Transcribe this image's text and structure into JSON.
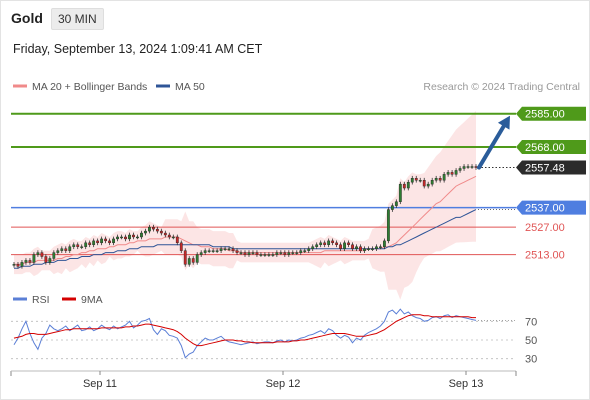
{
  "header": {
    "title": "Gold",
    "timeframe": "30 MIN",
    "datetime": "Friday, September 13, 2024 1:09:41 AM CET"
  },
  "legend": {
    "items": [
      {
        "label": "MA 20 + Bollinger Bands",
        "color": "#f08a8a"
      },
      {
        "label": "MA 50",
        "color": "#2f5597"
      }
    ],
    "credit": "Research © 2024 Trading Central"
  },
  "rsi_legend": {
    "items": [
      {
        "label": "RSI",
        "color": "#5b7fd6"
      },
      {
        "label": "9MA",
        "color": "#d40000"
      }
    ]
  },
  "colors": {
    "resistance": "#4f9a1a",
    "support": "#4f7ee0",
    "pivot_level": "#e05555",
    "current": "#2b2b2b",
    "arrow": "#2a5c9a",
    "candle_up": "#2e7d32",
    "candle_down": "#c62828",
    "band_fill": "#fbdcdc"
  },
  "chart_data": [
    {
      "type": "candlestick",
      "title": "",
      "x_ticks": [
        "Sep 11",
        "Sep 12",
        "Sep 13"
      ],
      "y_range": [
        2500,
        2592
      ],
      "levels": [
        {
          "value": 2585.0,
          "label": "2585.00",
          "kind": "resistance"
        },
        {
          "value": 2568.0,
          "label": "2568.00",
          "kind": "resistance"
        },
        {
          "value": 2557.48,
          "label": "2557.48",
          "kind": "current"
        },
        {
          "value": 2537.0,
          "label": "2537.00",
          "kind": "pivot"
        },
        {
          "value": 2527.0,
          "label": "2527.00",
          "kind": "support"
        },
        {
          "value": 2513.0,
          "label": "2513.00",
          "kind": "support"
        }
      ],
      "close_series": [
        2508,
        2507,
        2509,
        2510,
        2509,
        2513,
        2514,
        2512,
        2509,
        2511,
        2514,
        2515,
        2516,
        2515,
        2517,
        2518,
        2517,
        2517,
        2519,
        2518,
        2520,
        2519,
        2521,
        2520,
        2519,
        2521,
        2522,
        2522,
        2521,
        2523,
        2522,
        2522,
        2524,
        2525,
        2527,
        2526,
        2525,
        2524,
        2523,
        2522,
        2522,
        2519,
        2515,
        2508,
        2511,
        2509,
        2513,
        2514,
        2515,
        2515,
        2515,
        2515,
        2516,
        2516,
        2516,
        2515,
        2514,
        2514,
        2513,
        2514,
        2514,
        2513,
        2513,
        2513,
        2513,
        2513,
        2514,
        2514,
        2513,
        2514,
        2514,
        2514,
        2515,
        2515,
        2516,
        2517,
        2518,
        2519,
        2518,
        2520,
        2519,
        2518,
        2516,
        2519,
        2518,
        2516,
        2517,
        2515,
        2516,
        2516,
        2516,
        2517,
        2517,
        2520,
        2536,
        2538,
        2540,
        2549,
        2547,
        2550,
        2552,
        2551,
        2551,
        2548,
        2549,
        2551,
        2552,
        2551,
        2554,
        2555,
        2554,
        2556,
        2557,
        2558,
        2558,
        2558,
        2557.48
      ],
      "ma20_series": [
        2508,
        2508,
        2508,
        2509,
        2509,
        2509,
        2510,
        2510,
        2510,
        2510,
        2510,
        2511,
        2511,
        2512,
        2512,
        2513,
        2513,
        2514,
        2514,
        2515,
        2515,
        2516,
        2516,
        2516,
        2517,
        2517,
        2518,
        2518,
        2518,
        2519,
        2519,
        2520,
        2520,
        2520,
        2521,
        2521,
        2521,
        2521,
        2522,
        2522,
        2522,
        2522,
        2521,
        2520,
        2519,
        2518,
        2518,
        2517,
        2517,
        2517,
        2516,
        2516,
        2516,
        2516,
        2515,
        2515,
        2515,
        2514,
        2514,
        2514,
        2514,
        2514,
        2514,
        2514,
        2514,
        2514,
        2514,
        2514,
        2514,
        2514,
        2514,
        2514,
        2514,
        2514,
        2514,
        2514,
        2514,
        2514,
        2515,
        2515,
        2515,
        2515,
        2515,
        2515,
        2515,
        2515,
        2515,
        2515,
        2515,
        2516,
        2516,
        2516,
        2516,
        2517,
        2517,
        2518,
        2519,
        2521,
        2523,
        2525,
        2527,
        2529,
        2531,
        2533,
        2535,
        2537,
        2539,
        2540,
        2542,
        2544,
        2546,
        2548,
        2549,
        2550,
        2551,
        2552,
        2553
      ],
      "ma50_series": [
        2506,
        2506,
        2507,
        2507,
        2507,
        2508,
        2508,
        2508,
        2509,
        2509,
        2509,
        2510,
        2510,
        2510,
        2511,
        2511,
        2511,
        2512,
        2512,
        2512,
        2513,
        2513,
        2513,
        2514,
        2514,
        2514,
        2515,
        2515,
        2515,
        2516,
        2516,
        2516,
        2517,
        2517,
        2517,
        2517,
        2518,
        2518,
        2518,
        2518,
        2518,
        2518,
        2518,
        2518,
        2518,
        2518,
        2518,
        2518,
        2518,
        2518,
        2517,
        2517,
        2517,
        2517,
        2517,
        2516,
        2516,
        2516,
        2516,
        2516,
        2516,
        2516,
        2516,
        2516,
        2516,
        2516,
        2516,
        2516,
        2516,
        2516,
        2516,
        2516,
        2516,
        2516,
        2516,
        2516,
        2516,
        2516,
        2516,
        2516,
        2516,
        2516,
        2516,
        2516,
        2516,
        2516,
        2516,
        2516,
        2516,
        2516,
        2516,
        2516,
        2516,
        2516,
        2517,
        2517,
        2518,
        2518,
        2519,
        2520,
        2521,
        2522,
        2523,
        2524,
        2525,
        2526,
        2527,
        2528,
        2529,
        2530,
        2531,
        2532,
        2532,
        2533,
        2534,
        2535,
        2536
      ],
      "forecast_arrow": {
        "from": 2557.48,
        "to": 2585.0
      }
    },
    {
      "type": "line",
      "title": "",
      "y_ticks": [
        70,
        50,
        30
      ],
      "y_range": [
        20,
        80
      ],
      "series": [
        {
          "name": "RSI",
          "values": [
            45,
            52,
            62,
            70,
            57,
            47,
            40,
            52,
            57,
            66,
            62,
            60,
            62,
            65,
            60,
            63,
            66,
            60,
            61,
            64,
            60,
            62,
            66,
            63,
            61,
            65,
            62,
            64,
            66,
            70,
            63,
            66,
            70,
            71,
            73,
            61,
            56,
            62,
            60,
            55,
            54,
            52,
            44,
            31,
            35,
            37,
            44,
            48,
            52,
            50,
            50,
            52,
            54,
            50,
            48,
            47,
            46,
            45,
            46,
            47,
            48,
            46,
            47,
            48,
            48,
            47,
            49,
            50,
            48,
            50,
            49,
            50,
            52,
            53,
            55,
            56,
            58,
            60,
            57,
            62,
            60,
            55,
            52,
            55,
            53,
            47,
            52,
            50,
            55,
            58,
            60,
            62,
            65,
            70,
            80,
            82,
            78,
            83,
            78,
            80,
            76,
            74,
            73,
            70,
            71,
            74,
            75,
            73,
            76,
            77,
            74,
            76,
            75,
            74,
            73,
            72,
            71
          ]
        },
        {
          "name": "9MA",
          "values": [
            52,
            53,
            54,
            56,
            57,
            57,
            56,
            56,
            56,
            57,
            58,
            59,
            60,
            61,
            61,
            62,
            62,
            62,
            62,
            62,
            62,
            62,
            63,
            63,
            63,
            63,
            63,
            63,
            64,
            64,
            65,
            65,
            66,
            67,
            67,
            66,
            65,
            64,
            63,
            62,
            61,
            59,
            56,
            52,
            49,
            46,
            44,
            44,
            45,
            46,
            47,
            48,
            49,
            50,
            50,
            50,
            49,
            49,
            48,
            48,
            47,
            47,
            47,
            47,
            47,
            47,
            48,
            48,
            48,
            48,
            49,
            49,
            50,
            50,
            51,
            52,
            53,
            54,
            55,
            56,
            57,
            57,
            57,
            57,
            56,
            55,
            54,
            54,
            54,
            55,
            56,
            57,
            59,
            61,
            64,
            67,
            70,
            72,
            74,
            76,
            77,
            77,
            77,
            76,
            76,
            75,
            75,
            75,
            75,
            75,
            75,
            75,
            75,
            75,
            75,
            74,
            74
          ]
        }
      ]
    }
  ]
}
